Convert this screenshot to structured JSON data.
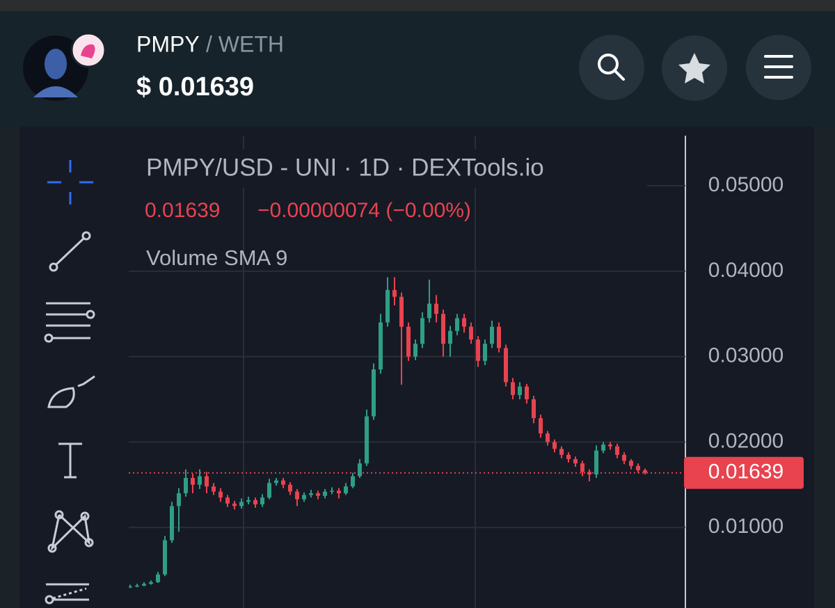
{
  "header": {
    "symbol": "PMPY",
    "quote": "/ WETH",
    "price": "$ 0.01639"
  },
  "chart_data": {
    "type": "candlestick",
    "title": "PMPY/USD - UNI · 1D · DEXTools.io",
    "change": "−0.00000074 (−0.00%)",
    "indicator": "Volume SMA 9",
    "open": [
      0.003,
      0.0031,
      0.0032,
      0.0034,
      0.0036,
      0.0045,
      0.0085,
      0.0125,
      0.014,
      0.0158,
      0.015,
      0.016,
      0.0148,
      0.0142,
      0.0135,
      0.0128,
      0.0125,
      0.013,
      0.0132,
      0.0127,
      0.0135,
      0.0152,
      0.0155,
      0.015,
      0.0142,
      0.0133,
      0.0138,
      0.014,
      0.0137,
      0.0142,
      0.0143,
      0.014,
      0.0148,
      0.016,
      0.0175,
      0.023,
      0.0285,
      0.034,
      0.0378,
      0.037,
      0.0335,
      0.03,
      0.0315,
      0.0345,
      0.0362,
      0.035,
      0.0315,
      0.033,
      0.0345,
      0.0335,
      0.032,
      0.0295,
      0.0315,
      0.0335,
      0.031,
      0.027,
      0.0255,
      0.0265,
      0.025,
      0.0228,
      0.021,
      0.02,
      0.0192,
      0.0185,
      0.018,
      0.0175,
      0.0165,
      0.0162,
      0.019,
      0.0197,
      0.0195,
      0.0185,
      0.0178,
      0.0172,
      0.0167
    ],
    "high": [
      0.0033,
      0.0034,
      0.0036,
      0.0038,
      0.0048,
      0.009,
      0.013,
      0.0146,
      0.0168,
      0.0163,
      0.0168,
      0.0165,
      0.0152,
      0.0146,
      0.0138,
      0.0131,
      0.0134,
      0.0136,
      0.0135,
      0.0139,
      0.0157,
      0.0158,
      0.0158,
      0.0153,
      0.0145,
      0.0141,
      0.0144,
      0.0143,
      0.0145,
      0.0147,
      0.0146,
      0.0152,
      0.0164,
      0.018,
      0.0238,
      0.0292,
      0.035,
      0.0393,
      0.0393,
      0.0375,
      0.034,
      0.032,
      0.0352,
      0.039,
      0.0372,
      0.0355,
      0.0336,
      0.035,
      0.035,
      0.034,
      0.0324,
      0.032,
      0.0342,
      0.034,
      0.0314,
      0.0275,
      0.027,
      0.0268,
      0.0254,
      0.0232,
      0.0213,
      0.0203,
      0.0195,
      0.0188,
      0.0183,
      0.0178,
      0.0168,
      0.0196,
      0.02,
      0.02,
      0.0198,
      0.0188,
      0.018,
      0.0175,
      0.0169
    ],
    "low": [
      0.0029,
      0.003,
      0.0031,
      0.0033,
      0.0035,
      0.0043,
      0.0082,
      0.0095,
      0.0136,
      0.014,
      0.0145,
      0.014,
      0.0138,
      0.013,
      0.0124,
      0.0121,
      0.0122,
      0.0127,
      0.0123,
      0.0124,
      0.0133,
      0.0149,
      0.0146,
      0.0138,
      0.0125,
      0.013,
      0.0135,
      0.0133,
      0.0134,
      0.0139,
      0.0134,
      0.0138,
      0.0146,
      0.0158,
      0.0172,
      0.0226,
      0.028,
      0.0335,
      0.036,
      0.0267,
      0.0295,
      0.0296,
      0.031,
      0.034,
      0.034,
      0.03,
      0.03,
      0.0325,
      0.0328,
      0.0315,
      0.0288,
      0.029,
      0.031,
      0.0305,
      0.0265,
      0.025,
      0.025,
      0.0245,
      0.0222,
      0.0205,
      0.0196,
      0.0188,
      0.0181,
      0.0176,
      0.0171,
      0.016,
      0.0154,
      0.0158,
      0.0187,
      0.0191,
      0.0181,
      0.0174,
      0.0168,
      0.0164,
      0.0162
    ],
    "close": [
      0.0031,
      0.0032,
      0.0034,
      0.0036,
      0.0045,
      0.0085,
      0.0125,
      0.014,
      0.0158,
      0.015,
      0.016,
      0.0148,
      0.0142,
      0.0135,
      0.0128,
      0.0125,
      0.013,
      0.0132,
      0.0127,
      0.0135,
      0.0152,
      0.0155,
      0.015,
      0.0142,
      0.0133,
      0.0138,
      0.014,
      0.0137,
      0.0142,
      0.0143,
      0.014,
      0.0148,
      0.016,
      0.0175,
      0.023,
      0.0285,
      0.034,
      0.0378,
      0.037,
      0.0335,
      0.03,
      0.0315,
      0.0345,
      0.0362,
      0.035,
      0.0315,
      0.033,
      0.0345,
      0.0335,
      0.032,
      0.0295,
      0.0315,
      0.0335,
      0.031,
      0.027,
      0.0255,
      0.0265,
      0.025,
      0.0228,
      0.021,
      0.02,
      0.0192,
      0.0185,
      0.018,
      0.0175,
      0.0165,
      0.0162,
      0.019,
      0.0197,
      0.0195,
      0.0185,
      0.0178,
      0.0172,
      0.0167,
      0.0164
    ],
    "up_color": "#2e9f86",
    "down_color": "#e8434f",
    "last_price": 0.01639,
    "ylim": [
      0,
      0.0555
    ],
    "yticks": [
      {
        "value": 0.01,
        "label": "0.01000"
      },
      {
        "value": 0.02,
        "label": "0.02000"
      },
      {
        "value": 0.03,
        "label": "0.03000"
      },
      {
        "value": 0.04,
        "label": "0.04000"
      },
      {
        "value": 0.05,
        "label": "0.05000"
      }
    ],
    "grid": true
  }
}
